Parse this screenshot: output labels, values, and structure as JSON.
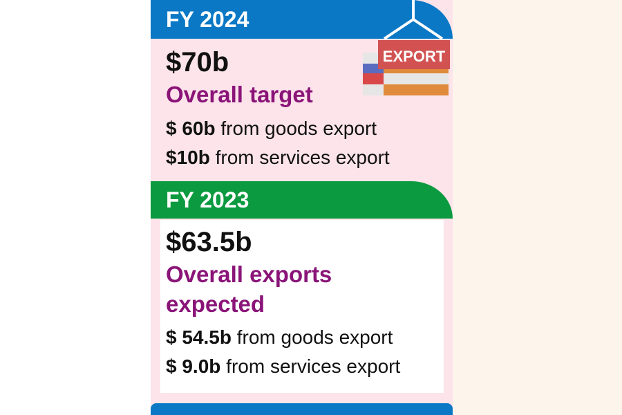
{
  "fy2024": {
    "year": "FY 2024",
    "total": "$70b",
    "total_label": "Overall target",
    "goods_value": "$ 60b",
    "goods_text": "from goods export",
    "services_value": "$10b",
    "services_text": "from services export",
    "badge": "EXPORT"
  },
  "fy2023": {
    "year": "FY 2023",
    "total": "$63.5b",
    "total_label_1": "Overall exports",
    "total_label_2": "expected",
    "goods_value": "$ 54.5b",
    "goods_text": "from goods export",
    "services_value": "$ 9.0b",
    "services_text": "from services export"
  },
  "colors": {
    "blue": "#0a78c5",
    "green": "#0b9a3f",
    "purple": "#8a1478",
    "pink": "#fce4ea"
  }
}
